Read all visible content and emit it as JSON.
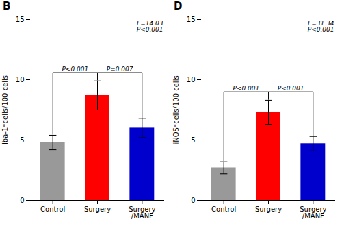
{
  "chart_data": [
    {
      "type": "bar",
      "title": "B",
      "categories": [
        "Control",
        "Surgery",
        "Surgery\n/MANF"
      ],
      "values": [
        4.8,
        8.7,
        6.0
      ],
      "errors": [
        0.6,
        1.2,
        0.8
      ],
      "colors": [
        "#999999",
        "#ff0000",
        "#0000cc"
      ],
      "ylabel": "Iba-1⁼cells/100 cells",
      "ylim": [
        0,
        15
      ],
      "yticks": [
        0,
        5,
        10,
        15
      ],
      "stat_text": "F=14.03\nP<0.001",
      "brackets": [
        {
          "from": 0,
          "to": 1,
          "label": "P<0.001"
        },
        {
          "from": 1,
          "to": 2,
          "label": "P=0.007"
        }
      ]
    },
    {
      "type": "bar",
      "title": "D",
      "categories": [
        "Control",
        "Surgery",
        "Surgery\n/MANF"
      ],
      "values": [
        2.7,
        7.3,
        4.7
      ],
      "errors": [
        0.5,
        1.0,
        0.6
      ],
      "colors": [
        "#999999",
        "#ff0000",
        "#0000cc"
      ],
      "ylabel": "iNOS⁼cells/100 cells",
      "ylim": [
        0,
        15
      ],
      "yticks": [
        0,
        5,
        10,
        15
      ],
      "stat_text": "F=31.34\nP<0.001",
      "brackets": [
        {
          "from": 0,
          "to": 1,
          "label": "P<0.001"
        },
        {
          "from": 1,
          "to": 2,
          "label": "P<0.001"
        }
      ]
    }
  ]
}
